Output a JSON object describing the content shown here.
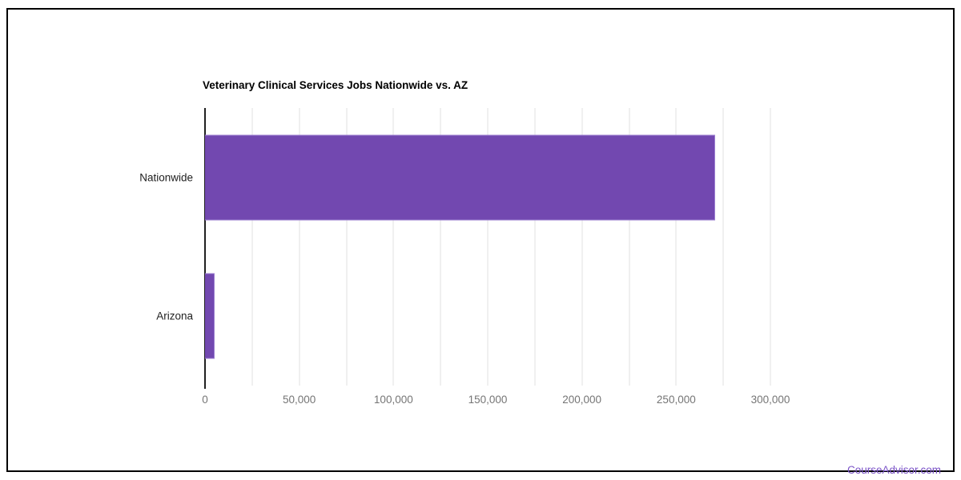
{
  "page": {
    "footer_link": "CourseAdvisor.com",
    "frame_border_color": "#000000",
    "background_color": "#ffffff",
    "footer_color": "#7A52C7"
  },
  "chart_data": {
    "type": "bar",
    "orientation": "horizontal",
    "title": "Veterinary Clinical Services Jobs Nationwide vs. AZ",
    "categories": [
      "Nationwide",
      "Arizona"
    ],
    "values": [
      270700,
      5100
    ],
    "xlabel": "",
    "ylabel": "",
    "xlim": [
      0,
      300000
    ],
    "x_minor_step": 25000,
    "x_ticks": [
      {
        "value": 0,
        "label": "0"
      },
      {
        "value": 50000,
        "label": "50,000"
      },
      {
        "value": 100000,
        "label": "100,000"
      },
      {
        "value": 150000,
        "label": "150,000"
      },
      {
        "value": 200000,
        "label": "200,000"
      },
      {
        "value": 250000,
        "label": "250,000"
      },
      {
        "value": 300000,
        "label": "300,000"
      }
    ],
    "grid": true,
    "legend_position": "none",
    "colors": {
      "bar": "#7248B0",
      "bar_border": "#9C7FD2",
      "gridline": "#e0e0e0",
      "axis": "#212121",
      "tick_label": "#757575",
      "category_label": "#212121",
      "title": "#000000"
    }
  }
}
